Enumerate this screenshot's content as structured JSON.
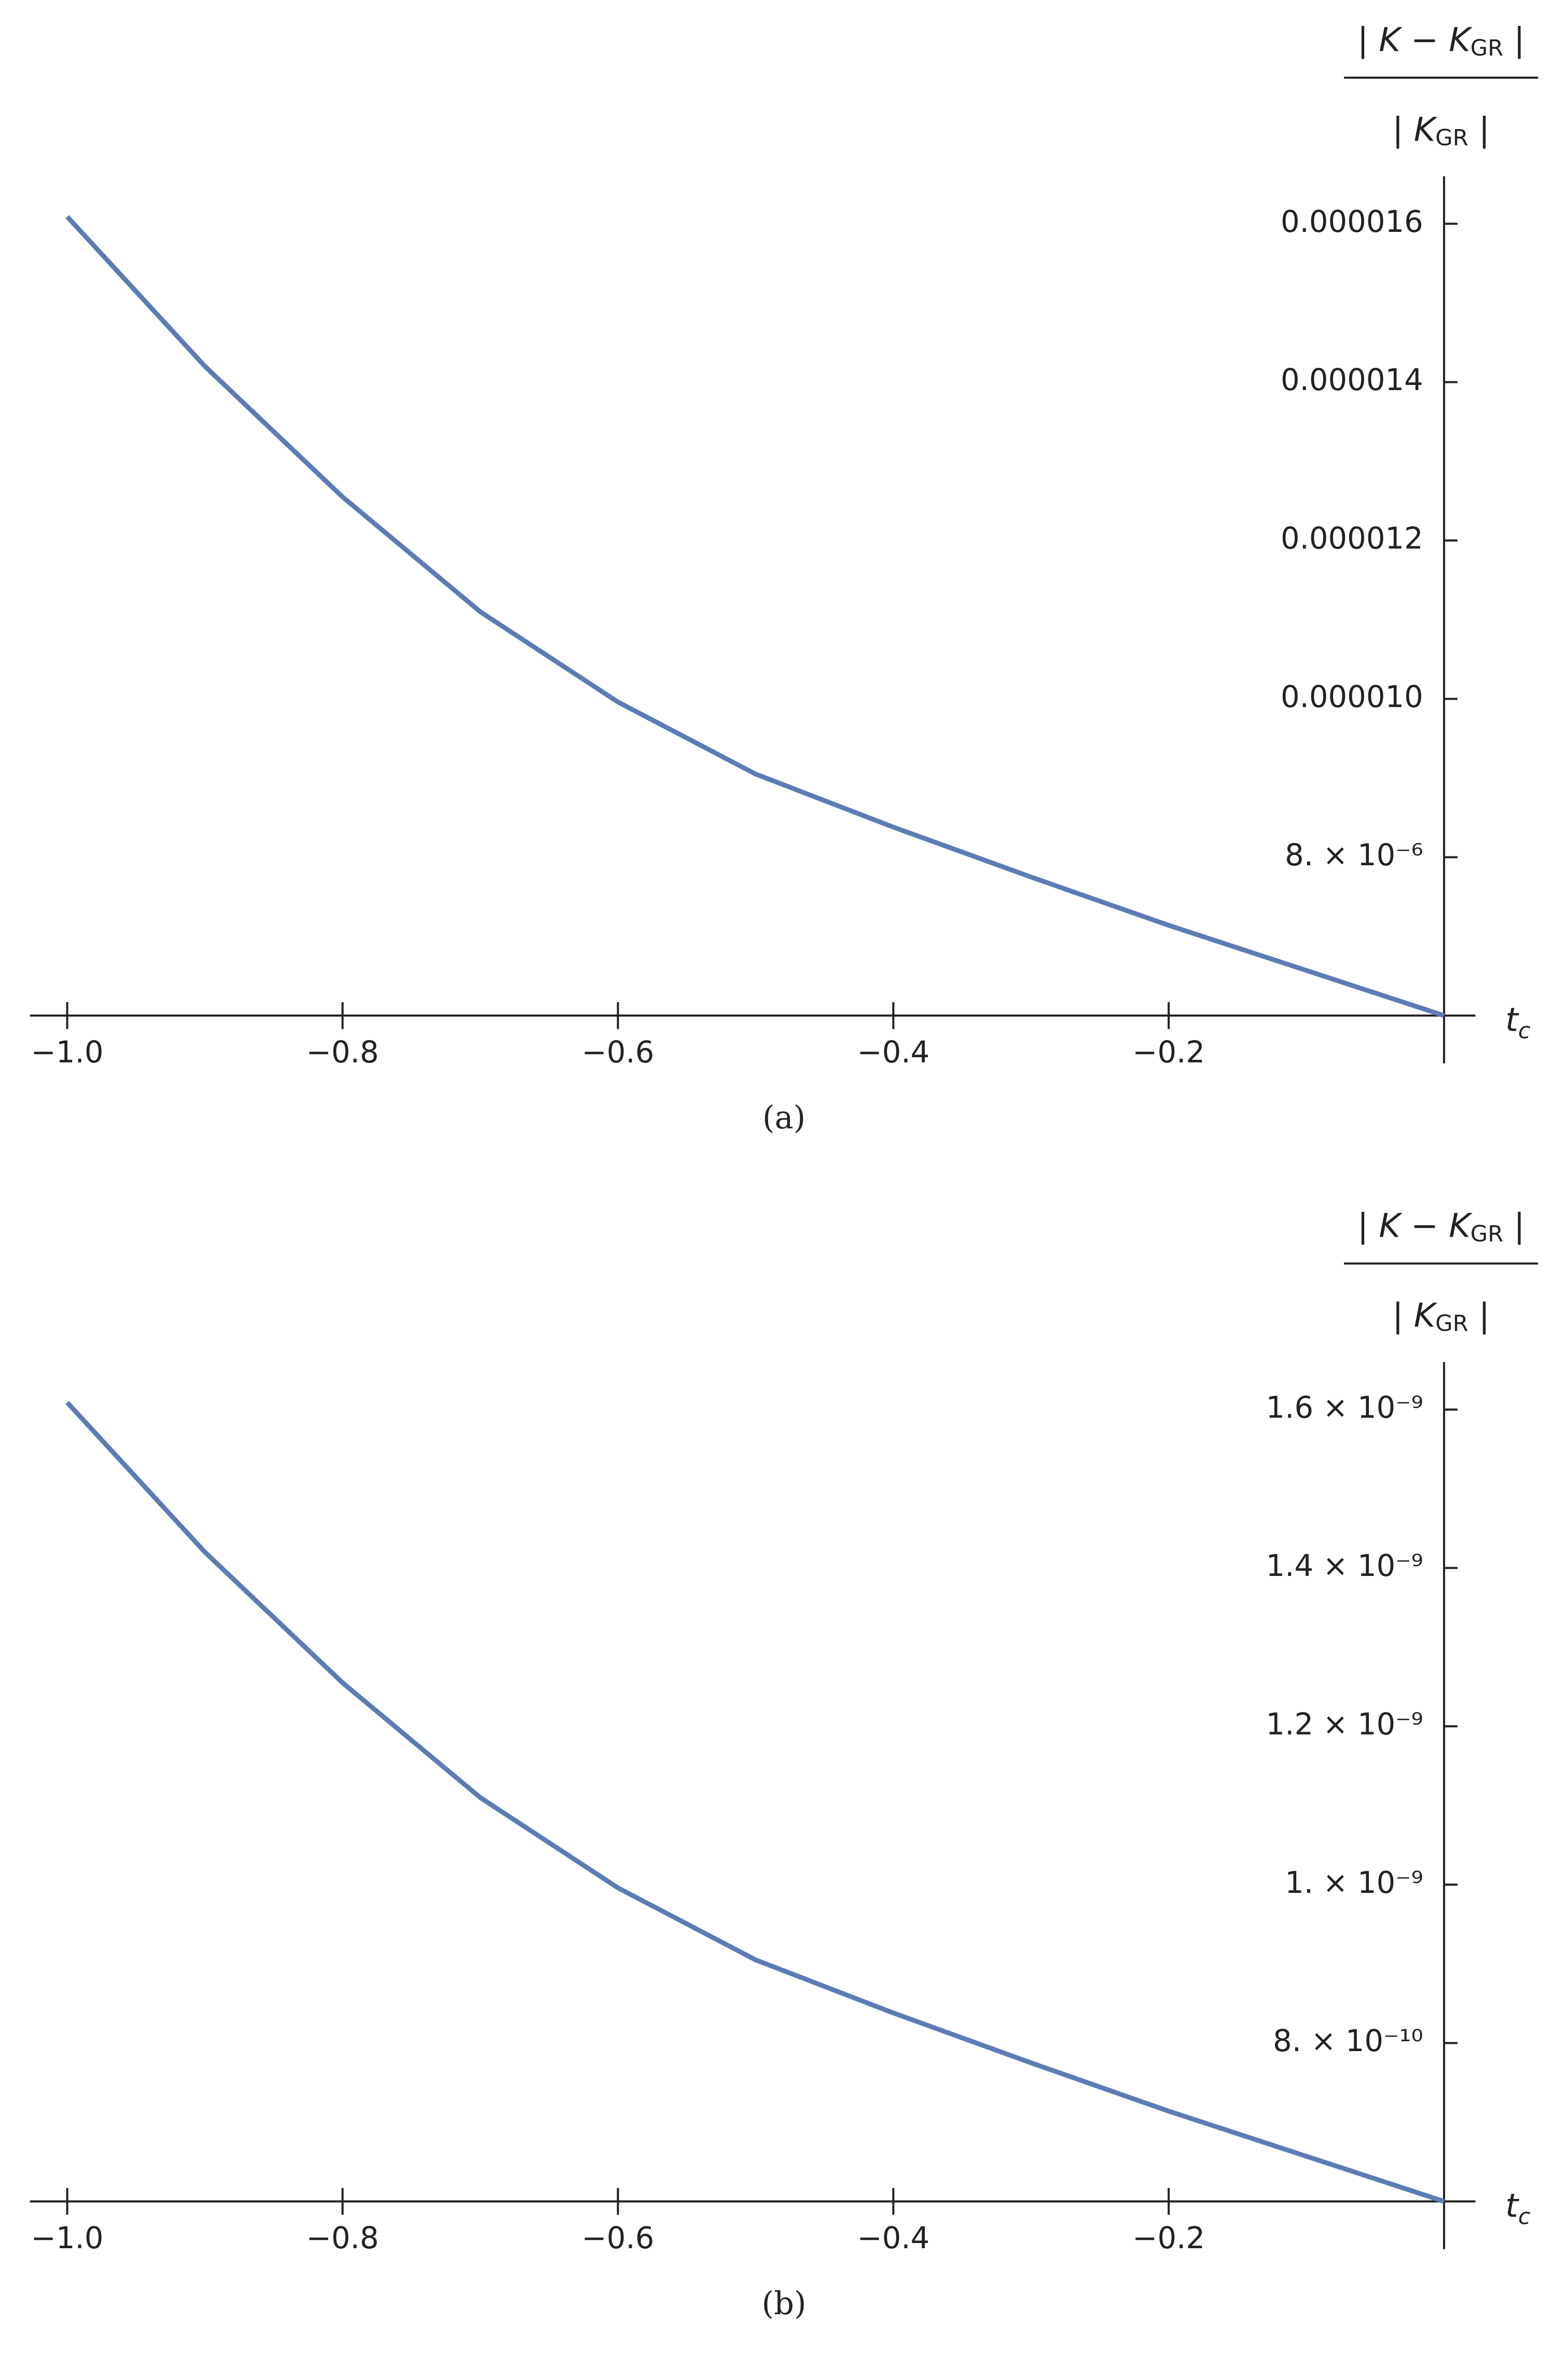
{
  "chart_data": [
    {
      "type": "line",
      "caption": "(a)",
      "ylabel": {
        "numerator": [
          "| K − K",
          "GR",
          " |"
        ],
        "denominator": [
          "| K",
          "GR",
          " |"
        ]
      },
      "xlabel": [
        "t",
        "c"
      ],
      "x": [
        -1.0,
        -0.9,
        -0.8,
        -0.7,
        -0.6,
        -0.5,
        -0.4,
        -0.3,
        -0.2,
        -0.1,
        0.0
      ],
      "series": [
        {
          "name": "curve",
          "color": "#5b7db5",
          "values": [
            1.609e-05,
            1.42e-05,
            1.255e-05,
            1.11e-05,
            9.96e-06,
            9.05e-06,
            8.38e-06,
            7.75e-06,
            7.14e-06,
            6.57e-06,
            6e-06
          ]
        }
      ],
      "xlim": [
        -1.0,
        0.0
      ],
      "ylim": [
        6e-06,
        1.66e-05
      ],
      "xticks": [
        {
          "value": -1.0,
          "label": "−1.0"
        },
        {
          "value": -0.8,
          "label": "−0.8"
        },
        {
          "value": -0.6,
          "label": "−0.6"
        },
        {
          "value": -0.4,
          "label": "−0.4"
        },
        {
          "value": -0.2,
          "label": "−0.2"
        }
      ],
      "yticks": [
        {
          "value": 8e-06,
          "label": "8. × 10⁻⁶"
        },
        {
          "value": 1e-05,
          "label": "0.000010"
        },
        {
          "value": 1.2e-05,
          "label": "0.000012"
        },
        {
          "value": 1.4e-05,
          "label": "0.000014"
        },
        {
          "value": 1.6e-05,
          "label": "0.000016"
        }
      ]
    },
    {
      "type": "line",
      "caption": "(b)",
      "ylabel": {
        "numerator": [
          "| K − K",
          "GR",
          " |"
        ],
        "denominator": [
          "| K",
          "GR",
          " |"
        ]
      },
      "xlabel": [
        "t",
        "c"
      ],
      "x": [
        -1.0,
        -0.9,
        -0.8,
        -0.7,
        -0.6,
        -0.5,
        -0.4,
        -0.3,
        -0.2,
        -0.1,
        0.0
      ],
      "series": [
        {
          "name": "curve",
          "color": "#5b7db5",
          "values": [
            1.609e-09,
            1.42e-09,
            1.255e-09,
            1.11e-09,
            9.96e-10,
            9.05e-10,
            8.38e-10,
            7.75e-10,
            7.14e-10,
            6.57e-10,
            6e-10
          ]
        }
      ],
      "xlim": [
        -1.0,
        0.0
      ],
      "ylim": [
        6e-10,
        1.66e-09
      ],
      "xticks": [
        {
          "value": -1.0,
          "label": "−1.0"
        },
        {
          "value": -0.8,
          "label": "−0.8"
        },
        {
          "value": -0.6,
          "label": "−0.6"
        },
        {
          "value": -0.4,
          "label": "−0.4"
        },
        {
          "value": -0.2,
          "label": "−0.2"
        }
      ],
      "yticks": [
        {
          "value": 8e-10,
          "label": "8. × 10⁻¹⁰"
        },
        {
          "value": 1e-09,
          "label": "1. × 10⁻⁹"
        },
        {
          "value": 1.2e-09,
          "label": "1.2 × 10⁻⁹"
        },
        {
          "value": 1.4e-09,
          "label": "1.4 × 10⁻⁹"
        },
        {
          "value": 1.6e-09,
          "label": "1.6 × 10⁻⁹"
        }
      ]
    }
  ]
}
